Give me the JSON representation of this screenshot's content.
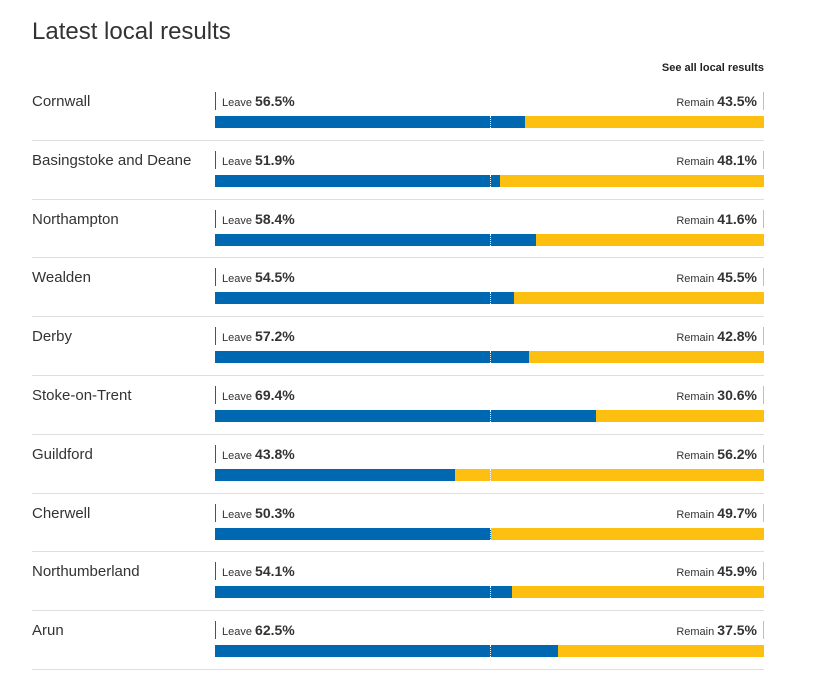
{
  "title": "Latest local results",
  "see_all": "See all local results",
  "leave_label": "Leave",
  "remain_label": "Remain",
  "colors": {
    "leave": "#0067b1",
    "remain": "#fec010"
  },
  "results": [
    {
      "area": "Cornwall",
      "leave": "56.5%",
      "remain": "43.5%",
      "leave_value": 56.5
    },
    {
      "area": "Basingstoke and Deane",
      "leave": "51.9%",
      "remain": "48.1%",
      "leave_value": 51.9
    },
    {
      "area": "Northampton",
      "leave": "58.4%",
      "remain": "41.6%",
      "leave_value": 58.4
    },
    {
      "area": "Wealden",
      "leave": "54.5%",
      "remain": "45.5%",
      "leave_value": 54.5
    },
    {
      "area": "Derby",
      "leave": "57.2%",
      "remain": "42.8%",
      "leave_value": 57.2
    },
    {
      "area": "Stoke-on-Trent",
      "leave": "69.4%",
      "remain": "30.6%",
      "leave_value": 69.4
    },
    {
      "area": "Guildford",
      "leave": "43.8%",
      "remain": "56.2%",
      "leave_value": 43.8
    },
    {
      "area": "Cherwell",
      "leave": "50.3%",
      "remain": "49.7%",
      "leave_value": 50.3
    },
    {
      "area": "Northumberland",
      "leave": "54.1%",
      "remain": "45.9%",
      "leave_value": 54.1
    },
    {
      "area": "Arun",
      "leave": "62.5%",
      "remain": "37.5%",
      "leave_value": 62.5
    }
  ]
}
